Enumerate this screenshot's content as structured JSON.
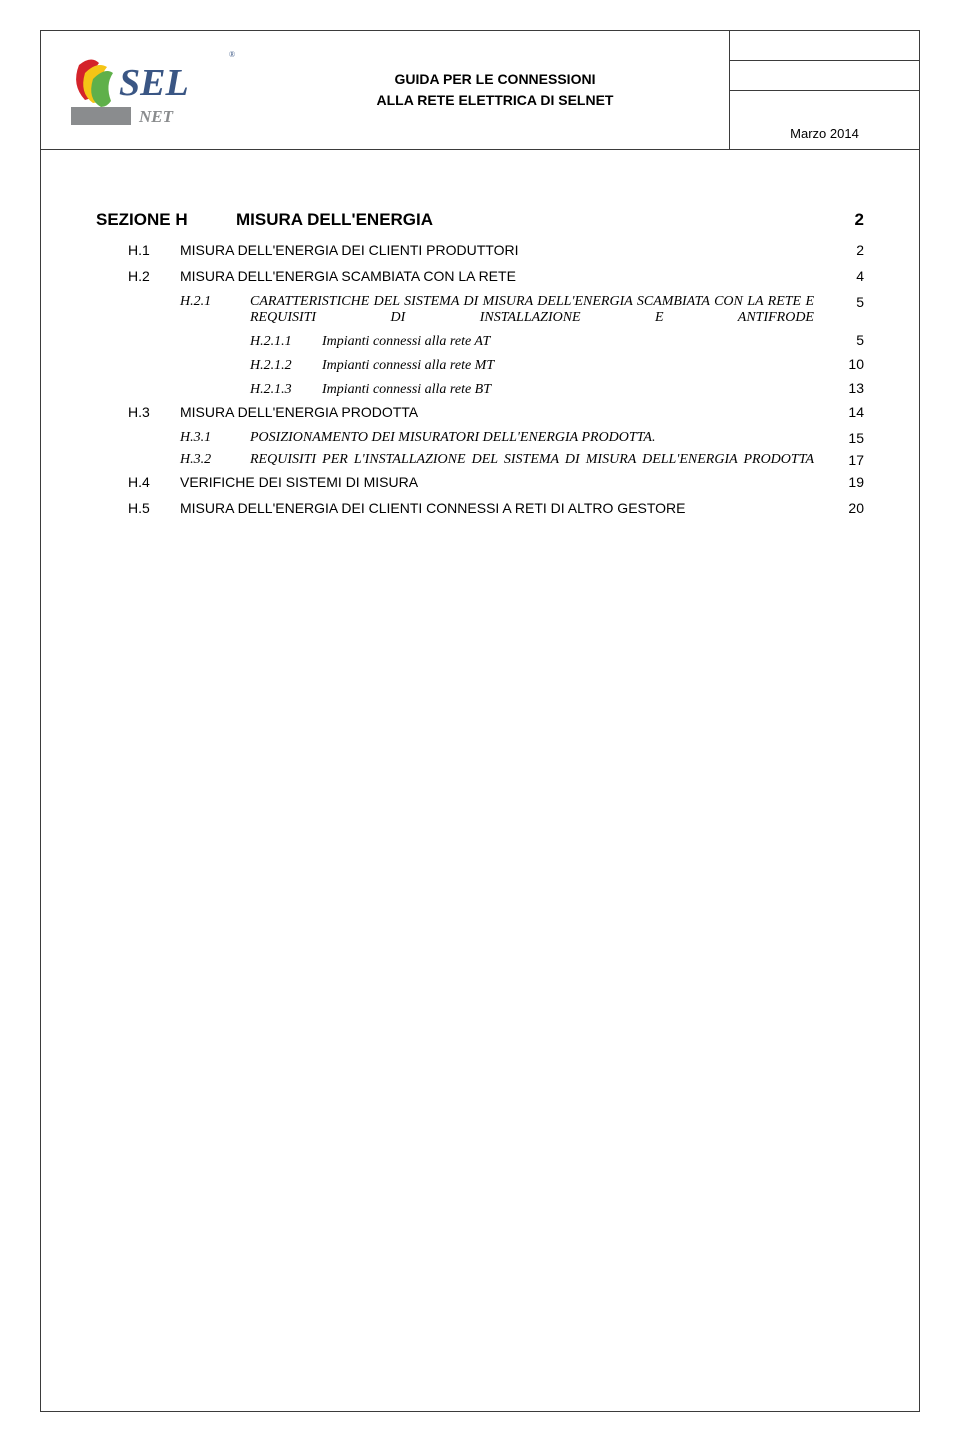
{
  "header": {
    "title_line1": "GUIDA PER LE CONNESSIONI",
    "title_line2": "ALLA RETE ELETTRICA DI SELNET",
    "date": "Marzo 2014",
    "logo_main": "SEL",
    "logo_sub": "NET",
    "logo_reg": "®"
  },
  "toc": {
    "section_label": "SEZIONE H",
    "section_title": "MISURA DELL'ENERGIA",
    "section_page": "2",
    "entries": [
      {
        "level": 1,
        "num": "H.1",
        "title": "MISURA DELL'ENERGIA DEI CLIENTI PRODUTTORI",
        "page": "2"
      },
      {
        "level": 1,
        "num": "H.2",
        "title": "MISURA DELL'ENERGIA SCAMBIATA CON LA RETE",
        "page": "4"
      },
      {
        "level": 2,
        "num": "H.2.1",
        "title": "CARATTERISTICHE DEL SISTEMA DI MISURA DELL'ENERGIA SCAMBIATA CON LA RETE E REQUISITI DI INSTALLAZIONE E ANTIFRODE",
        "page": "5",
        "justify": true
      },
      {
        "level": 3,
        "num": "H.2.1.1",
        "title": "Impianti connessi alla rete AT",
        "page": "5"
      },
      {
        "level": 3,
        "num": "H.2.1.2",
        "title": "Impianti connessi  alla rete MT",
        "page": "10"
      },
      {
        "level": 3,
        "num": "H.2.1.3",
        "title": "Impianti connessi alla rete BT",
        "page": "13"
      },
      {
        "level": 1,
        "num": "H.3",
        "title": "MISURA DELL'ENERGIA PRODOTTA",
        "page": "14"
      },
      {
        "level": 2,
        "num": "H.3.1",
        "title": "POSIZIONAMENTO DEI MISURATORI DELL'ENERGIA PRODOTTA.",
        "page": "15"
      },
      {
        "level": 2,
        "num": "H.3.2",
        "title": "REQUISITI PER L'INSTALLAZIONE DEL SISTEMA DI MISURA DELL'ENERGIA PRODOTTA",
        "page": "17",
        "justify": true
      },
      {
        "level": 1,
        "num": "H.4",
        "title": "VERIFICHE DEI SISTEMI DI MISURA",
        "page": "19"
      },
      {
        "level": 1,
        "num": "H.5",
        "title": "MISURA DELL'ENERGIA DEI CLIENTI CONNESSI A RETI DI ALTRO GESTORE",
        "page": "20"
      }
    ]
  },
  "colors": {
    "border": "#3b3b3b",
    "text": "#000000",
    "logo_red": "#d4232a",
    "logo_green": "#5fb04a",
    "logo_yellow": "#f5c516",
    "logo_text": "#3a5684",
    "logo_net": "#8a8c8e"
  }
}
